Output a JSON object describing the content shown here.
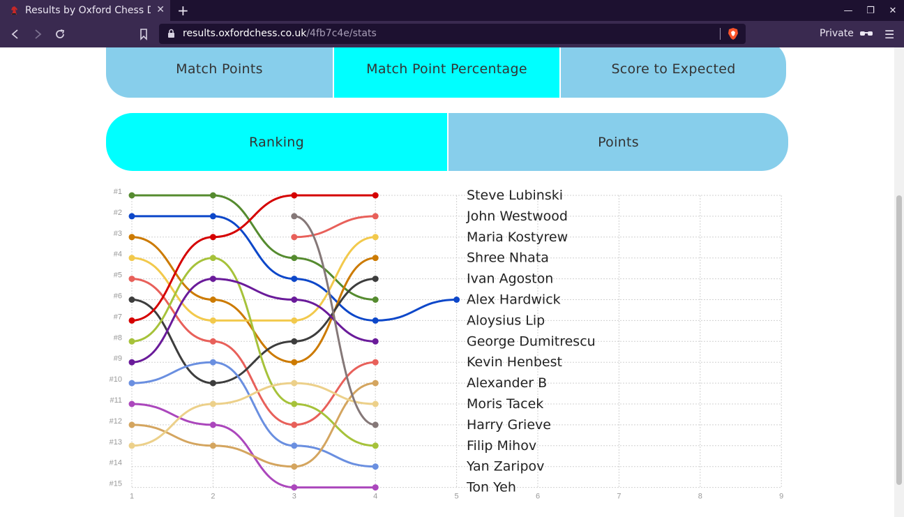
{
  "browser": {
    "tab_title": "Results by Oxford Chess De",
    "url_domain": "results.oxfordchess.co.uk",
    "url_path": "/4fb7c4e/stats",
    "private_label": "Private"
  },
  "stat_tabs": [
    {
      "label": "Match Points",
      "active": false
    },
    {
      "label": "Match Point Percentage",
      "active": true
    },
    {
      "label": "Score to Expected",
      "active": false
    }
  ],
  "view_tabs": [
    {
      "label": "Ranking",
      "active": true
    },
    {
      "label": "Points",
      "active": false
    }
  ],
  "chart_data": {
    "type": "line",
    "x": [
      1,
      2,
      3,
      4,
      5,
      6,
      7,
      8,
      9
    ],
    "y_ticks": [
      "#1",
      "#2",
      "#3",
      "#4",
      "#5",
      "#6",
      "#7",
      "#8",
      "#9",
      "#10",
      "#11",
      "#12",
      "#13",
      "#14",
      "#15"
    ],
    "ylim": [
      1,
      15
    ],
    "y_reversed": true,
    "grid": true,
    "series": [
      {
        "color": "#558b2f",
        "points": [
          [
            1,
            1
          ],
          [
            2,
            1
          ],
          [
            3,
            4
          ],
          [
            4,
            6
          ]
        ]
      },
      {
        "color": "#0d47c9",
        "points": [
          [
            1,
            2
          ],
          [
            2,
            2
          ],
          [
            3,
            5
          ],
          [
            4,
            7
          ],
          [
            5,
            6
          ]
        ]
      },
      {
        "color": "#cc7a00",
        "points": [
          [
            1,
            3
          ],
          [
            2,
            6
          ],
          [
            3,
            9
          ],
          [
            4,
            4
          ]
        ]
      },
      {
        "color": "#f2c94c",
        "points": [
          [
            1,
            4
          ],
          [
            2,
            7
          ],
          [
            3,
            7
          ],
          [
            4,
            3
          ]
        ]
      },
      {
        "color": "#e8605a",
        "points": [
          [
            1,
            5
          ],
          [
            2,
            8
          ],
          [
            3,
            12
          ],
          [
            4,
            9
          ]
        ]
      },
      {
        "color": "#3d3d3d",
        "points": [
          [
            1,
            6
          ],
          [
            2,
            10
          ],
          [
            3,
            8
          ],
          [
            4,
            5
          ]
        ]
      },
      {
        "color": "#d50000",
        "points": [
          [
            1,
            7
          ],
          [
            2,
            3
          ],
          [
            3,
            1
          ],
          [
            4,
            1
          ]
        ]
      },
      {
        "color": "#a6c23a",
        "points": [
          [
            1,
            8
          ],
          [
            2,
            4
          ],
          [
            3,
            11
          ],
          [
            4,
            13
          ]
        ]
      },
      {
        "color": "#6a1b9a",
        "points": [
          [
            1,
            9
          ],
          [
            2,
            5
          ],
          [
            3,
            6
          ],
          [
            4,
            8
          ]
        ]
      },
      {
        "color": "#6a8fe0",
        "points": [
          [
            1,
            10
          ],
          [
            2,
            9
          ],
          [
            3,
            13
          ],
          [
            4,
            14
          ]
        ]
      },
      {
        "color": "#ab47bc",
        "points": [
          [
            1,
            11
          ],
          [
            2,
            12
          ],
          [
            3,
            15
          ],
          [
            4,
            15
          ]
        ]
      },
      {
        "color": "#d4a55f",
        "points": [
          [
            1,
            12
          ],
          [
            2,
            13
          ],
          [
            3,
            14
          ],
          [
            4,
            10
          ]
        ]
      },
      {
        "color": "#ecd08a",
        "points": [
          [
            1,
            13
          ],
          [
            2,
            11
          ],
          [
            3,
            10
          ],
          [
            4,
            11
          ]
        ]
      },
      {
        "color": "#e8605a",
        "points": [
          [
            3,
            3
          ],
          [
            4,
            2
          ]
        ]
      },
      {
        "color": "#857878",
        "points": [
          [
            3,
            2
          ],
          [
            4,
            12
          ]
        ]
      }
    ],
    "annotations": [
      "Steve Lubinski",
      "John Westwood",
      "Maria Kostyrew",
      "Shree Nhata",
      "Ivan Agoston",
      "Alex Hardwick",
      "Aloysius Lip",
      "George Dumitrescu",
      "Kevin Henbest",
      "Alexander B",
      "Moris Tacek",
      "Harry Grieve",
      "Filip Mihov",
      "Yan Zaripov",
      "Ton Yeh"
    ]
  }
}
